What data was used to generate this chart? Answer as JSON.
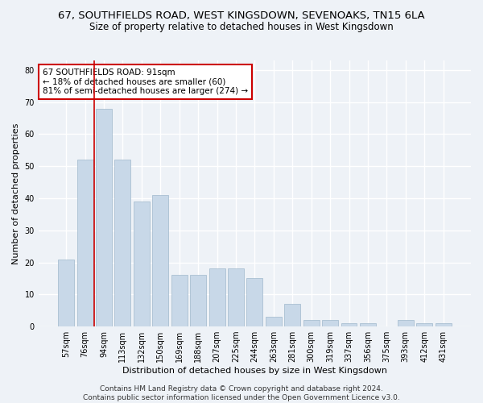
{
  "title": "67, SOUTHFIELDS ROAD, WEST KINGSDOWN, SEVENOAKS, TN15 6LA",
  "subtitle": "Size of property relative to detached houses in West Kingsdown",
  "xlabel": "Distribution of detached houses by size in West Kingsdown",
  "ylabel": "Number of detached properties",
  "categories": [
    "57sqm",
    "76sqm",
    "94sqm",
    "113sqm",
    "132sqm",
    "150sqm",
    "169sqm",
    "188sqm",
    "207sqm",
    "225sqm",
    "244sqm",
    "263sqm",
    "281sqm",
    "300sqm",
    "319sqm",
    "337sqm",
    "356sqm",
    "375sqm",
    "393sqm",
    "412sqm",
    "431sqm"
  ],
  "values": [
    21,
    52,
    68,
    52,
    39,
    41,
    16,
    16,
    18,
    18,
    15,
    3,
    7,
    2,
    2,
    1,
    1,
    0,
    2,
    1,
    1
  ],
  "bar_color": "#c8d8e8",
  "bar_edgecolor": "#a0b8cc",
  "vline_x_idx": 1.5,
  "vline_color": "#cc0000",
  "annotation_text": "67 SOUTHFIELDS ROAD: 91sqm\n← 18% of detached houses are smaller (60)\n81% of semi-detached houses are larger (274) →",
  "annotation_box_edgecolor": "#cc0000",
  "annotation_box_facecolor": "#ffffff",
  "ylim": [
    0,
    83
  ],
  "yticks": [
    0,
    10,
    20,
    30,
    40,
    50,
    60,
    70,
    80
  ],
  "footer": "Contains HM Land Registry data © Crown copyright and database right 2024.\nContains public sector information licensed under the Open Government Licence v3.0.",
  "background_color": "#eef2f7",
  "plot_background_color": "#eef2f7",
  "grid_color": "#ffffff",
  "title_fontsize": 9.5,
  "subtitle_fontsize": 8.5,
  "xlabel_fontsize": 8,
  "ylabel_fontsize": 8,
  "tick_fontsize": 7,
  "annotation_fontsize": 7.5,
  "footer_fontsize": 6.5
}
